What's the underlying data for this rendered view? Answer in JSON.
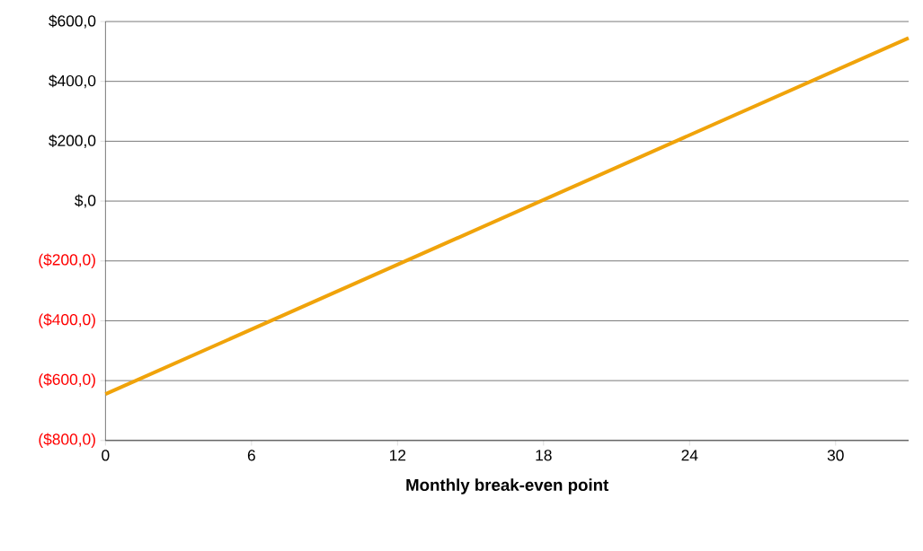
{
  "chart_data": {
    "type": "line",
    "xlabel": "Monthly break-even point",
    "x": [
      0,
      33
    ],
    "series": [
      {
        "color": "#f0a30a",
        "values": [
          -645,
          545
        ]
      }
    ],
    "xlim": [
      0,
      33
    ],
    "xticks": [
      0,
      6,
      12,
      18,
      24,
      30
    ],
    "ylim": [
      -800,
      600
    ],
    "yticks": [
      {
        "value": 600,
        "label": "$600,0"
      },
      {
        "value": 400,
        "label": "$400,0"
      },
      {
        "value": 200,
        "label": "$200,0"
      },
      {
        "value": 0,
        "label": "$,0"
      },
      {
        "value": -200,
        "label": "($200,0)"
      },
      {
        "value": -400,
        "label": "($400,0)"
      },
      {
        "value": -600,
        "label": "($600,0)"
      },
      {
        "value": -800,
        "label": "($800,0)"
      }
    ],
    "grid": "y",
    "marker": "none",
    "line_style": "solid"
  }
}
